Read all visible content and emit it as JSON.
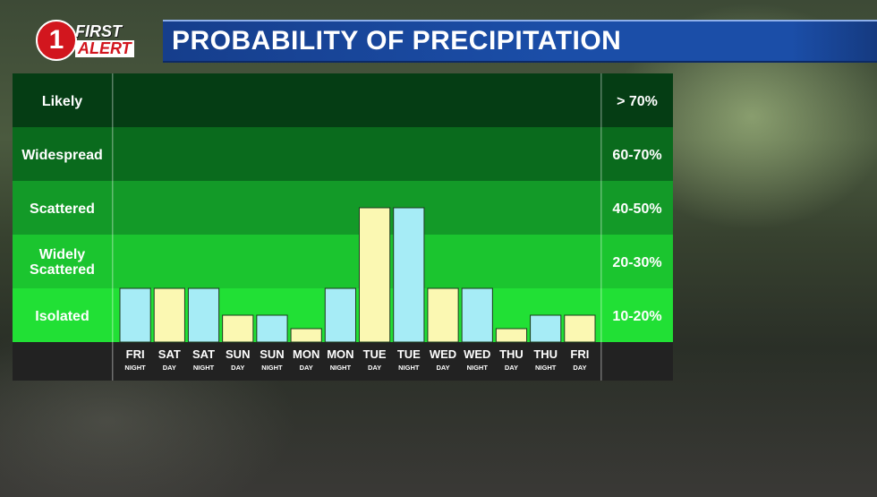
{
  "branding": {
    "logo_number": "1",
    "logo_line1": "FIRST",
    "logo_line2": "ALERT"
  },
  "title": "PROBABILITY OF PRECIPITATION",
  "colors": {
    "day_bar": "#fbf8b2",
    "night_bar": "#a6ecf6",
    "band_likely": "#053d14",
    "band_widespread": "#0a6b1d",
    "band_scattered": "#139a28",
    "band_widely_scattered": "#1bc52f",
    "band_isolated": "#21e035",
    "axis_strip": "#222222"
  },
  "chart_data": {
    "type": "bar",
    "title": "PROBABILITY OF PRECIPITATION",
    "categories": [
      {
        "day": "FRI",
        "period": "NIGHT"
      },
      {
        "day": "SAT",
        "period": "DAY"
      },
      {
        "day": "SAT",
        "period": "NIGHT"
      },
      {
        "day": "SUN",
        "period": "DAY"
      },
      {
        "day": "SUN",
        "period": "NIGHT"
      },
      {
        "day": "MON",
        "period": "DAY"
      },
      {
        "day": "MON",
        "period": "NIGHT"
      },
      {
        "day": "TUE",
        "period": "DAY"
      },
      {
        "day": "TUE",
        "period": "NIGHT"
      },
      {
        "day": "WED",
        "period": "DAY"
      },
      {
        "day": "WED",
        "period": "NIGHT"
      },
      {
        "day": "THU",
        "period": "DAY"
      },
      {
        "day": "THU",
        "period": "NIGHT"
      },
      {
        "day": "FRI",
        "period": "DAY"
      }
    ],
    "values": [
      20,
      20,
      20,
      10,
      10,
      5,
      20,
      50,
      50,
      20,
      20,
      5,
      10,
      10
    ],
    "bands": [
      {
        "name": "Likely",
        "range": "> 70%",
        "low": 70,
        "high": 100
      },
      {
        "name": "Widespread",
        "range": "60-70%",
        "low": 60,
        "high": 70
      },
      {
        "name": "Scattered",
        "range": "40-50%",
        "low": 40,
        "high": 60
      },
      {
        "name": "Widely Scattered",
        "range": "20-30%",
        "low": 20,
        "high": 40
      },
      {
        "name": "Isolated",
        "range": "10-20%",
        "low": 0,
        "high": 20
      }
    ],
    "ylabel": "",
    "xlabel": "",
    "ylim": [
      0,
      100
    ],
    "grid": false,
    "legend": "none"
  }
}
